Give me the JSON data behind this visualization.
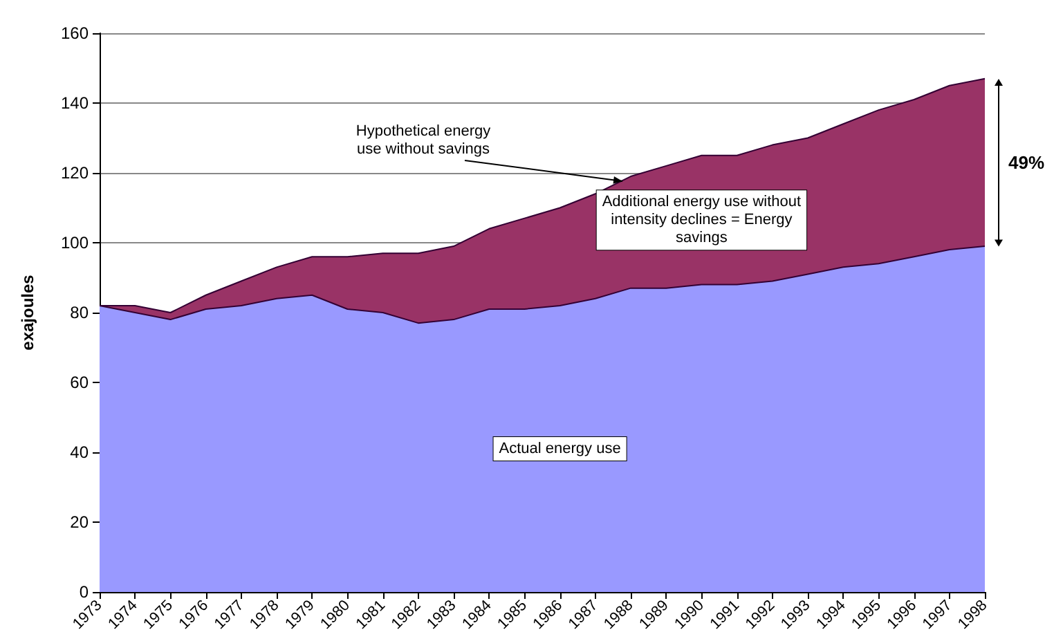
{
  "chart_data": {
    "type": "area",
    "ylabel": "exajoules",
    "stacked": true,
    "grid": "y",
    "marker": "none",
    "categories": [
      "1973",
      "1974",
      "1975",
      "1976",
      "1977",
      "1978",
      "1979",
      "1980",
      "1981",
      "1982",
      "1983",
      "1984",
      "1985",
      "1986",
      "1987",
      "1988",
      "1989",
      "1990",
      "1991",
      "1992",
      "1993",
      "1994",
      "1995",
      "1996",
      "1997",
      "1998"
    ],
    "series": [
      {
        "color": "#9999ff",
        "values": [
          82,
          80,
          78,
          81,
          82,
          84,
          85,
          81,
          80,
          77,
          78,
          81,
          81,
          82,
          84,
          87,
          87,
          88,
          88,
          89,
          91,
          93,
          94,
          96,
          98,
          99
        ]
      },
      {
        "color": "#993366",
        "values": [
          0,
          2,
          2,
          4,
          7,
          9,
          11,
          15,
          17,
          20,
          21,
          23,
          26,
          28,
          30,
          32,
          35,
          37,
          37,
          39,
          39,
          41,
          44,
          45,
          47,
          48
        ]
      }
    ],
    "ylim": [
      0,
      160
    ],
    "yticks": [
      0,
      20,
      40,
      60,
      80,
      100,
      120,
      140,
      160
    ],
    "annotations": [
      "Actual energy use",
      "Additional energy use without\nintensity declines = Energy\nsavings",
      {
        "text": "Hypothetical energy\nuse without savings",
        "x": "1988",
        "y": 119
      },
      "49%"
    ]
  }
}
